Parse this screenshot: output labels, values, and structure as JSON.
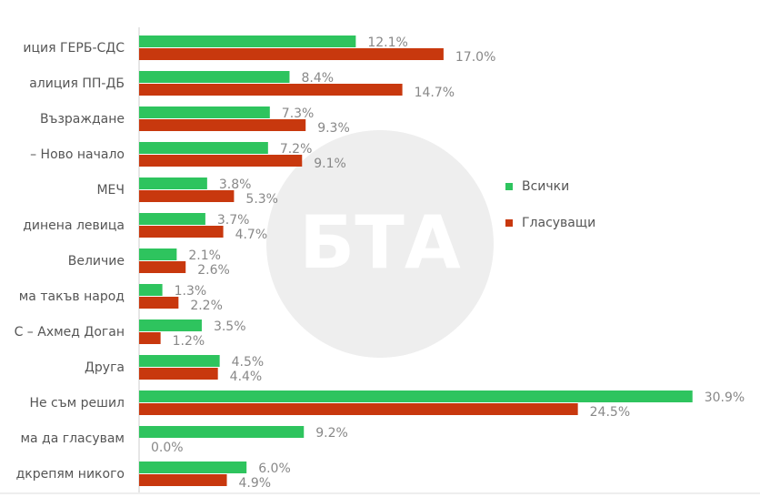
{
  "chart_data": {
    "type": "hbar",
    "watermark": "БТА",
    "categories": [
      "иция ГЕРБ-СДС",
      "алиция ПП-ДБ",
      "Възраждане",
      "– Ново начало",
      "МЕЧ",
      "динена левица",
      "Величие",
      "ма такъв народ",
      "С – Ахмед Доган",
      "Друга",
      "Не съм решил",
      "ма да гласувам",
      "дкрепям никого"
    ],
    "series": [
      {
        "name": "Всички",
        "color": "#2ec45e",
        "values": [
          12.1,
          8.4,
          7.3,
          7.2,
          3.8,
          3.7,
          2.1,
          1.3,
          3.5,
          4.5,
          30.9,
          9.2,
          6.0
        ],
        "value_labels": [
          "12.1%",
          "8.4%",
          "7.3%",
          "7.2%",
          "3.8%",
          "3.7%",
          "2.1%",
          "1.3%",
          "3.5%",
          "4.5%",
          "30.9%",
          "9.2%",
          "6.0%"
        ]
      },
      {
        "name": "Гласуващи",
        "color": "#c8380e",
        "values": [
          17.0,
          14.7,
          9.3,
          9.1,
          5.3,
          4.7,
          2.6,
          2.2,
          1.2,
          4.4,
          24.5,
          0.0,
          4.9
        ],
        "value_labels": [
          "17.0%",
          "14.7%",
          "9.3%",
          "9.1%",
          "5.3%",
          "4.7%",
          "2.6%",
          "2.2%",
          "1.2%",
          "4.4%",
          "24.5%",
          "0.0%",
          "4.9%"
        ]
      }
    ],
    "legend": "right"
  }
}
